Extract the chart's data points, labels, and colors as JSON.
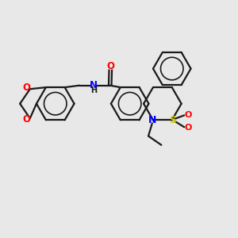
{
  "background_color": "#e8e8e8",
  "bond_color": "#1a1a1a",
  "nitrogen_color": "#0000ff",
  "oxygen_color": "#ff0000",
  "sulfur_color": "#cccc00",
  "line_width": 1.6,
  "figsize": [
    3.0,
    3.0
  ],
  "dpi": 100,
  "xlim": [
    0,
    10
  ],
  "ylim": [
    0,
    10
  ]
}
